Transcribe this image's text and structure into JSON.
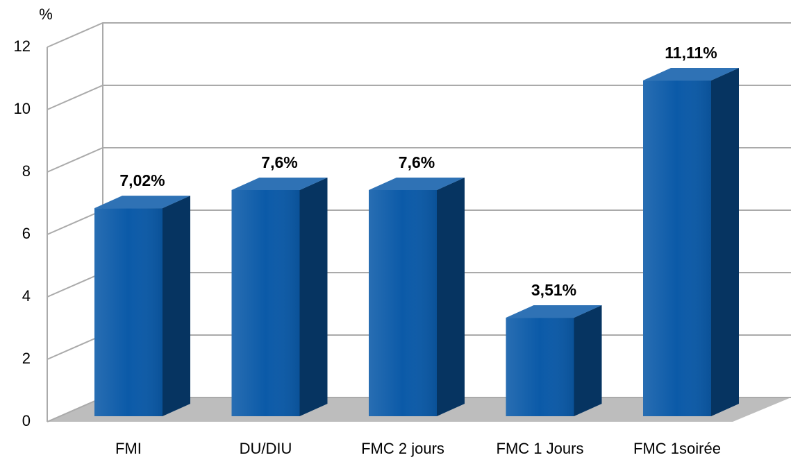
{
  "chart_data": {
    "type": "bar",
    "y_axis_label": "%",
    "categories": [
      "FMI",
      "DU/DIU",
      "FMC 2 jours",
      "FMC 1 Jours",
      "FMC 1soirée"
    ],
    "values": [
      7.02,
      7.6,
      7.6,
      3.51,
      11.11
    ],
    "value_labels": [
      "7,02%",
      "7,6%",
      "7,6%",
      "3,51%",
      "11,11%"
    ],
    "color": "#0b5aa8",
    "ylim": [
      0,
      12
    ],
    "yticks": [
      0,
      2,
      4,
      6,
      8,
      10,
      12
    ],
    "grid": true
  }
}
